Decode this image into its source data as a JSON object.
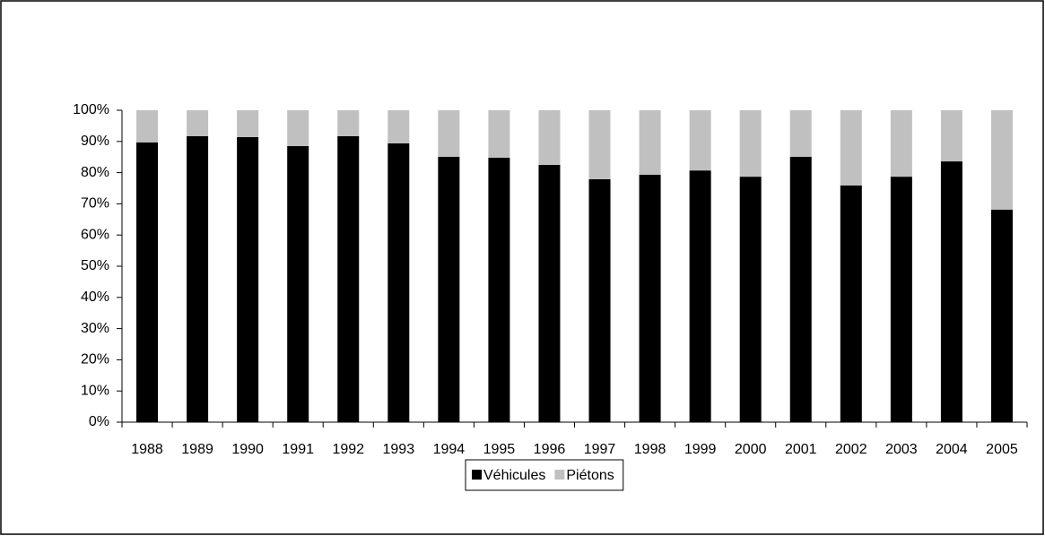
{
  "chart_data": {
    "type": "stacked_bar",
    "categories": [
      "1988",
      "1989",
      "1990",
      "1991",
      "1992",
      "1993",
      "1994",
      "1995",
      "1996",
      "1997",
      "1998",
      "1999",
      "2000",
      "2001",
      "2002",
      "2003",
      "2004",
      "2005"
    ],
    "series": [
      {
        "name": "Véhicules",
        "color": "#000000",
        "values": [
          89.7,
          91.7,
          91.4,
          88.5,
          91.7,
          89.4,
          85.1,
          84.8,
          82.5,
          77.9,
          79.3,
          80.7,
          78.7,
          85.1,
          75.9,
          78.7,
          83.6,
          68.1
        ]
      },
      {
        "name": "Piétons",
        "color": "#c0c0c0",
        "values": [
          10.3,
          8.3,
          8.6,
          11.5,
          8.3,
          10.6,
          14.9,
          15.2,
          17.5,
          22.1,
          20.7,
          19.3,
          21.3,
          14.9,
          24.1,
          21.3,
          16.4,
          31.9
        ]
      }
    ],
    "ylim": [
      0,
      100
    ],
    "yticks": [
      {
        "value": 0,
        "label": "0%"
      },
      {
        "value": 10,
        "label": "10%"
      },
      {
        "value": 20,
        "label": "20%"
      },
      {
        "value": 30,
        "label": "30%"
      },
      {
        "value": 40,
        "label": "40%"
      },
      {
        "value": 50,
        "label": "50%"
      },
      {
        "value": 60,
        "label": "60%"
      },
      {
        "value": 70,
        "label": "70%"
      },
      {
        "value": 80,
        "label": "80%"
      },
      {
        "value": 90,
        "label": "90%"
      },
      {
        "value": 100,
        "label": "100%"
      }
    ],
    "grid": false,
    "legend": "bottom"
  }
}
